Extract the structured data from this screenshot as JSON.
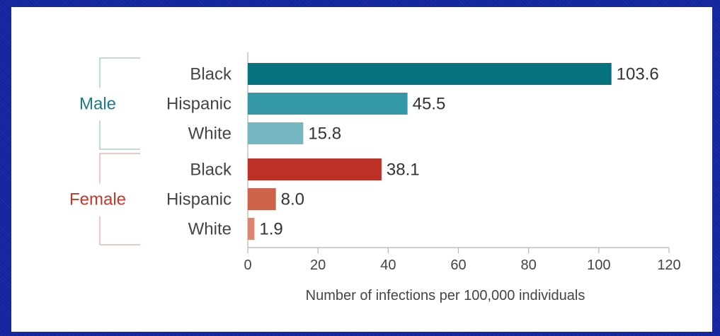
{
  "chart_data": {
    "type": "bar",
    "orientation": "horizontal",
    "xlabel": "Number of infections per 100,000 individuals",
    "xlim": [
      0,
      120
    ],
    "xticks": [
      "0",
      "20",
      "40",
      "60",
      "80",
      "100",
      "120"
    ],
    "grid": false,
    "groups": [
      {
        "name": "Male",
        "color": "#1a7a8a",
        "bars": [
          {
            "category": "Black",
            "value": 103.6,
            "label": "103.6",
            "color": "#06737f"
          },
          {
            "category": "Hispanic",
            "value": 45.5,
            "label": "45.5",
            "color": "#3498a6"
          },
          {
            "category": "White",
            "value": 15.8,
            "label": "15.8",
            "color": "#74b6c1"
          }
        ]
      },
      {
        "name": "Female",
        "color": "#c0392b",
        "bars": [
          {
            "category": "Black",
            "value": 38.1,
            "label": "38.1",
            "color": "#bd3026"
          },
          {
            "category": "Hispanic",
            "value": 8.0,
            "label": "8.0",
            "color": "#cc634a"
          },
          {
            "category": "White",
            "value": 1.9,
            "label": "1.9",
            "color": "#d98670"
          }
        ]
      }
    ]
  }
}
